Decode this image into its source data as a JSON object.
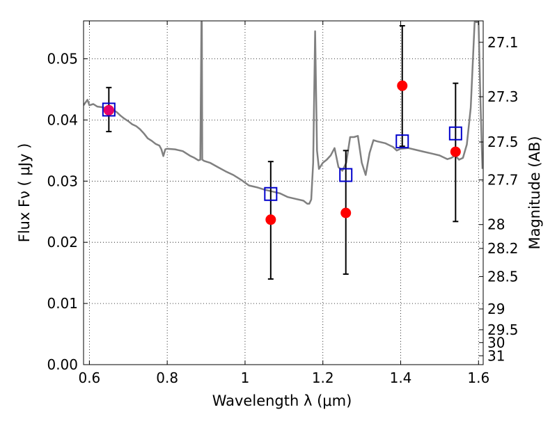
{
  "chart_data": {
    "type": "scatter",
    "title": "",
    "xlabel": "Wavelength  λ (μm)",
    "ylabel": "Flux  Fν  ( μJy )",
    "y2label": "Magnitude (AB)",
    "xlim": [
      0.585,
      1.612
    ],
    "ylim": [
      0.0,
      0.0562
    ],
    "xticks": [
      {
        "v": 0.6,
        "label": "0.6"
      },
      {
        "v": 0.8,
        "label": "0.8"
      },
      {
        "v": 1.0,
        "label": "1"
      },
      {
        "v": 1.2,
        "label": "1.2"
      },
      {
        "v": 1.4,
        "label": "1.4"
      },
      {
        "v": 1.6,
        "label": "1.6"
      }
    ],
    "yticks": [
      {
        "v": 0.0,
        "label": "0.00"
      },
      {
        "v": 0.01,
        "label": "0.01"
      },
      {
        "v": 0.02,
        "label": "0.02"
      },
      {
        "v": 0.03,
        "label": "0.03"
      },
      {
        "v": 0.04,
        "label": "0.04"
      },
      {
        "v": 0.05,
        "label": "0.05"
      }
    ],
    "magnitude_ticks": [
      {
        "flux": 0.0527,
        "label": "27.1"
      },
      {
        "flux": 0.0438,
        "label": "27.3"
      },
      {
        "flux": 0.0364,
        "label": "27.5"
      },
      {
        "flux": 0.0302,
        "label": "27.7"
      },
      {
        "flux": 0.0229,
        "label": "28"
      },
      {
        "flux": 0.019,
        "label": "28.2"
      },
      {
        "flux": 0.0144,
        "label": "28.5"
      },
      {
        "flux": 0.0091,
        "label": "29"
      },
      {
        "flux": 0.0057,
        "label": "29.5"
      },
      {
        "flux": 0.0036,
        "label": "30"
      },
      {
        "flux": 0.00145,
        "label": "31"
      }
    ],
    "grid": true,
    "series": [
      {
        "kind": "line",
        "color": "#808080",
        "points": [
          [
            0.585,
            0.0424
          ],
          [
            0.595,
            0.0433
          ],
          [
            0.6,
            0.0424
          ],
          [
            0.61,
            0.0426
          ],
          [
            0.62,
            0.0422
          ],
          [
            0.63,
            0.0421
          ],
          [
            0.64,
            0.042
          ],
          [
            0.65,
            0.0418
          ],
          [
            0.66,
            0.0417
          ],
          [
            0.67,
            0.0413
          ],
          [
            0.68,
            0.0407
          ],
          [
            0.69,
            0.0402
          ],
          [
            0.7,
            0.0398
          ],
          [
            0.71,
            0.0393
          ],
          [
            0.72,
            0.039
          ],
          [
            0.73,
            0.0385
          ],
          [
            0.74,
            0.0378
          ],
          [
            0.75,
            0.037
          ],
          [
            0.76,
            0.0366
          ],
          [
            0.77,
            0.0361
          ],
          [
            0.78,
            0.0358
          ],
          [
            0.785,
            0.0352
          ],
          [
            0.79,
            0.0341
          ],
          [
            0.795,
            0.0352
          ],
          [
            0.8,
            0.0353
          ],
          [
            0.82,
            0.0352
          ],
          [
            0.84,
            0.0349
          ],
          [
            0.86,
            0.0341
          ],
          [
            0.87,
            0.0338
          ],
          [
            0.88,
            0.0334
          ],
          [
            0.885,
            0.0335
          ],
          [
            0.888,
            0.056
          ],
          [
            0.889,
            0.056
          ],
          [
            0.89,
            0.0335
          ],
          [
            0.895,
            0.0333
          ],
          [
            0.91,
            0.033
          ],
          [
            0.93,
            0.0323
          ],
          [
            0.95,
            0.0316
          ],
          [
            0.97,
            0.031
          ],
          [
            0.99,
            0.0302
          ],
          [
            1.01,
            0.0293
          ],
          [
            1.03,
            0.029
          ],
          [
            1.05,
            0.0286
          ],
          [
            1.07,
            0.0283
          ],
          [
            1.09,
            0.028
          ],
          [
            1.11,
            0.0274
          ],
          [
            1.13,
            0.0271
          ],
          [
            1.15,
            0.0268
          ],
          [
            1.16,
            0.0263
          ],
          [
            1.165,
            0.0263
          ],
          [
            1.17,
            0.027
          ],
          [
            1.175,
            0.033
          ],
          [
            1.18,
            0.0545
          ],
          [
            1.185,
            0.035
          ],
          [
            1.19,
            0.032
          ],
          [
            1.2,
            0.033
          ],
          [
            1.21,
            0.0335
          ],
          [
            1.22,
            0.0342
          ],
          [
            1.23,
            0.0354
          ],
          [
            1.24,
            0.0323
          ],
          [
            1.25,
            0.0317
          ],
          [
            1.26,
            0.033
          ],
          [
            1.27,
            0.0372
          ],
          [
            1.28,
            0.0372
          ],
          [
            1.29,
            0.0374
          ],
          [
            1.3,
            0.033
          ],
          [
            1.31,
            0.031
          ],
          [
            1.32,
            0.0346
          ],
          [
            1.33,
            0.0367
          ],
          [
            1.34,
            0.0365
          ],
          [
            1.36,
            0.0362
          ],
          [
            1.38,
            0.0356
          ],
          [
            1.39,
            0.035
          ],
          [
            1.4,
            0.0353
          ],
          [
            1.42,
            0.0354
          ],
          [
            1.44,
            0.0351
          ],
          [
            1.46,
            0.0348
          ],
          [
            1.48,
            0.0345
          ],
          [
            1.5,
            0.0342
          ],
          [
            1.52,
            0.0336
          ],
          [
            1.53,
            0.0338
          ],
          [
            1.54,
            0.0342
          ],
          [
            1.55,
            0.0335
          ],
          [
            1.56,
            0.0338
          ],
          [
            1.57,
            0.036
          ],
          [
            1.58,
            0.042
          ],
          [
            1.59,
            0.056
          ],
          [
            1.6,
            0.056
          ],
          [
            1.605,
            0.043
          ],
          [
            1.61,
            0.032
          ]
        ]
      },
      {
        "kind": "errorbar",
        "color": "#000000",
        "points": [
          {
            "x": 0.65,
            "y": 0.0416,
            "lo": 0.0381,
            "hi": 0.0453
          },
          {
            "x": 1.066,
            "y": 0.0237,
            "lo": 0.014,
            "hi": 0.0332
          },
          {
            "x": 1.259,
            "y": 0.0248,
            "lo": 0.0148,
            "hi": 0.035
          },
          {
            "x": 1.404,
            "y": 0.0456,
            "lo": 0.0357,
            "hi": 0.0554
          },
          {
            "x": 1.541,
            "y": 0.0348,
            "lo": 0.0234,
            "hi": 0.046
          }
        ]
      },
      {
        "kind": "scatter",
        "marker": "circle",
        "color": "#ff0000",
        "points": [
          [
            0.65,
            0.0416
          ],
          [
            1.066,
            0.0237
          ],
          [
            1.259,
            0.0248
          ],
          [
            1.404,
            0.0456
          ],
          [
            1.541,
            0.0348
          ]
        ]
      },
      {
        "kind": "scatter",
        "marker": "square",
        "color": "#0000cc",
        "points": [
          [
            0.65,
            0.0417
          ],
          [
            1.066,
            0.0279
          ],
          [
            1.259,
            0.031
          ],
          [
            1.404,
            0.0365
          ],
          [
            1.541,
            0.0378
          ]
        ]
      }
    ]
  }
}
